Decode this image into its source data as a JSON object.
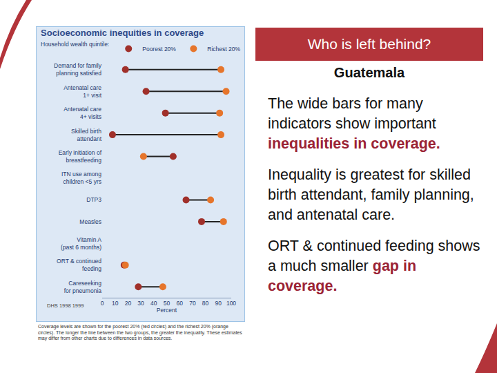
{
  "chart_data": {
    "type": "dumbbell",
    "title": "Socioeconomic inequities in coverage",
    "legend_title": "Household wealth quintile:",
    "legend": "top left",
    "orientation": "horizontal",
    "categories": [
      "Demand for family\nplanning satisfied",
      "Antenatal care\n1+ visit",
      "Antenatal care\n4+ visits",
      "Skilled birth\nattendant",
      "Early initiation of\nbreastfeeding",
      "ITN use among\nchildren <5 yrs",
      "DTP3",
      "Measles",
      "Vitamin A\n(past 6 months)",
      "ORT & continued\nfeeding",
      "Careseeking\nfor pneumonia"
    ],
    "series": [
      {
        "name": "Poorest 20%",
        "color": "#a0302a",
        "marker": "circle",
        "values": [
          18,
          34,
          49,
          8,
          55,
          null,
          65,
          77,
          null,
          17,
          28
        ]
      },
      {
        "name": "Richest 20%",
        "color": "#e6752b",
        "marker": "circle",
        "values": [
          92,
          96,
          91,
          92,
          32,
          null,
          84,
          94,
          null,
          18,
          47
        ]
      }
    ],
    "x_label": "Percent",
    "xlim": [
      0,
      100
    ],
    "xticks": [
      0,
      10,
      20,
      30,
      40,
      50,
      60,
      70,
      80,
      90,
      100
    ],
    "grid": false,
    "annotations": [
      "DHS 1998 1999"
    ],
    "caption": "Coverage levels are shown for the poorest 20% (red circles) and the richest 20% (orange circles). The longer the line between the two groups, the greater the inequality. These estimates may differ from other charts due to differences in data sources."
  },
  "slide": {
    "title": "Who is left behind?",
    "subtitle": "Guatemala",
    "paragraphs": [
      [
        {
          "text": "The wide bars for many indicators show important "
        },
        {
          "text": "inequalities in coverage.",
          "emphasis": true
        }
      ],
      [
        {
          "text": "Inequality is greatest for skilled birth attendant, family planning, and antenatal care."
        }
      ],
      [
        {
          "text": "ORT & continued feeding shows a much smaller "
        },
        {
          "text": "gap in coverage.",
          "emphasis": true
        }
      ]
    ]
  }
}
